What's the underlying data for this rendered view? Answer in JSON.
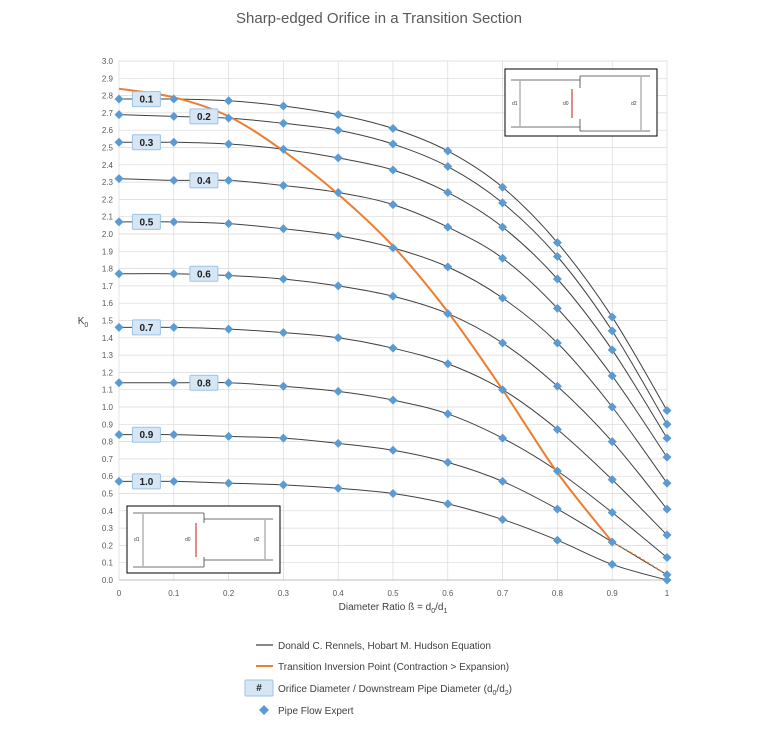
{
  "chart_data": {
    "type": "line",
    "title": "Sharp-edged Orifice in a Transition Section",
    "xlabel": "Diameter Ratio ß = d",
    "xlabel_sub0": "0",
    "xlabel_mid": "/d",
    "xlabel_sub1": "1",
    "ylabel": "K",
    "ylabel_sub": "0",
    "xlim": [
      0,
      1
    ],
    "ylim": [
      0,
      3.0
    ],
    "x_ticks": [
      "0",
      "0.1",
      "0.2",
      "0.3",
      "0.4",
      "0.5",
      "0.6",
      "0.7",
      "0.8",
      "0.9",
      "1"
    ],
    "y_ticks": [
      "0.0",
      "0.1",
      "0.2",
      "0.3",
      "0.4",
      "0.5",
      "0.6",
      "0.7",
      "0.8",
      "0.9",
      "1.0",
      "1.1",
      "1.2",
      "1.3",
      "1.4",
      "1.5",
      "1.6",
      "1.7",
      "1.8",
      "1.9",
      "2.0",
      "2.1",
      "2.2",
      "2.3",
      "2.4",
      "2.5",
      "2.6",
      "2.7",
      "2.8",
      "2.9",
      "3.0"
    ],
    "grid": true,
    "x": [
      0,
      0.1,
      0.2,
      0.3,
      0.4,
      0.5,
      0.6,
      0.7,
      0.8,
      0.9,
      1.0
    ],
    "series": [
      {
        "label": "0.1",
        "values": [
          2.78,
          2.78,
          2.77,
          2.74,
          2.69,
          2.61,
          2.48,
          2.27,
          1.95,
          1.52,
          0.98
        ]
      },
      {
        "label": "0.2",
        "values": [
          2.69,
          2.68,
          2.67,
          2.64,
          2.6,
          2.52,
          2.39,
          2.18,
          1.87,
          1.44,
          0.9
        ]
      },
      {
        "label": "0.3",
        "values": [
          2.53,
          2.53,
          2.52,
          2.49,
          2.44,
          2.37,
          2.24,
          2.04,
          1.74,
          1.33,
          0.82
        ]
      },
      {
        "label": "0.4",
        "values": [
          2.32,
          2.31,
          2.31,
          2.28,
          2.24,
          2.17,
          2.04,
          1.86,
          1.57,
          1.18,
          0.71
        ]
      },
      {
        "label": "0.5",
        "values": [
          2.07,
          2.07,
          2.06,
          2.03,
          1.99,
          1.92,
          1.81,
          1.63,
          1.37,
          1.0,
          0.56
        ]
      },
      {
        "label": "0.6",
        "values": [
          1.77,
          1.77,
          1.76,
          1.74,
          1.7,
          1.64,
          1.54,
          1.37,
          1.12,
          0.8,
          0.41
        ]
      },
      {
        "label": "0.7",
        "values": [
          1.46,
          1.46,
          1.45,
          1.43,
          1.4,
          1.34,
          1.25,
          1.1,
          0.87,
          0.58,
          0.26
        ]
      },
      {
        "label": "0.8",
        "values": [
          1.14,
          1.14,
          1.14,
          1.12,
          1.09,
          1.04,
          0.96,
          0.82,
          0.63,
          0.39,
          0.13
        ]
      },
      {
        "label": "0.9",
        "values": [
          0.84,
          0.84,
          0.83,
          0.82,
          0.79,
          0.75,
          0.68,
          0.57,
          0.41,
          0.22,
          0.03
        ]
      },
      {
        "label": "1.0",
        "values": [
          0.57,
          0.57,
          0.56,
          0.55,
          0.53,
          0.5,
          0.44,
          0.35,
          0.23,
          0.09,
          0.0
        ]
      }
    ],
    "inversion_curve": {
      "x": [
        0.0,
        0.1,
        0.2,
        0.3,
        0.4,
        0.5,
        0.6,
        0.7,
        0.8,
        0.9,
        0.95,
        1.0
      ],
      "y": [
        2.84,
        2.79,
        2.68,
        2.48,
        2.23,
        1.93,
        1.55,
        1.1,
        0.62,
        0.22,
        0.13,
        0.03
      ]
    },
    "legend": [
      {
        "text": "Donald C. Rennels, Hobart M. Hudson Equation",
        "kind": "line",
        "color": "#404040"
      },
      {
        "text": "Transition Inversion Point (Contraction > Expansion)",
        "kind": "line",
        "color": "#ED7D31"
      },
      {
        "text": "Orifice Diameter / Downstream Pipe Diameter (d",
        "sub": "0",
        "mid": "/d",
        "sub2": "2",
        "end": ")",
        "kind": "badge",
        "badge": "#"
      },
      {
        "text": "Pipe Flow Expert",
        "kind": "marker",
        "color": "#5B9BD5"
      }
    ],
    "legend_position": "bottom",
    "colors": {
      "curve": "#404040",
      "inversion": "#ED7D31",
      "marker": "#5B9BD5",
      "grid": "#D9D9D9",
      "badge_fill": "#D6E6F4",
      "badge_stroke": "#9DC3E6"
    }
  },
  "insets": {
    "top_right": {
      "labels": [
        "d1",
        "d0",
        "d2"
      ]
    },
    "bottom_left": {
      "labels": [
        "d1",
        "d0",
        "d2"
      ]
    }
  }
}
